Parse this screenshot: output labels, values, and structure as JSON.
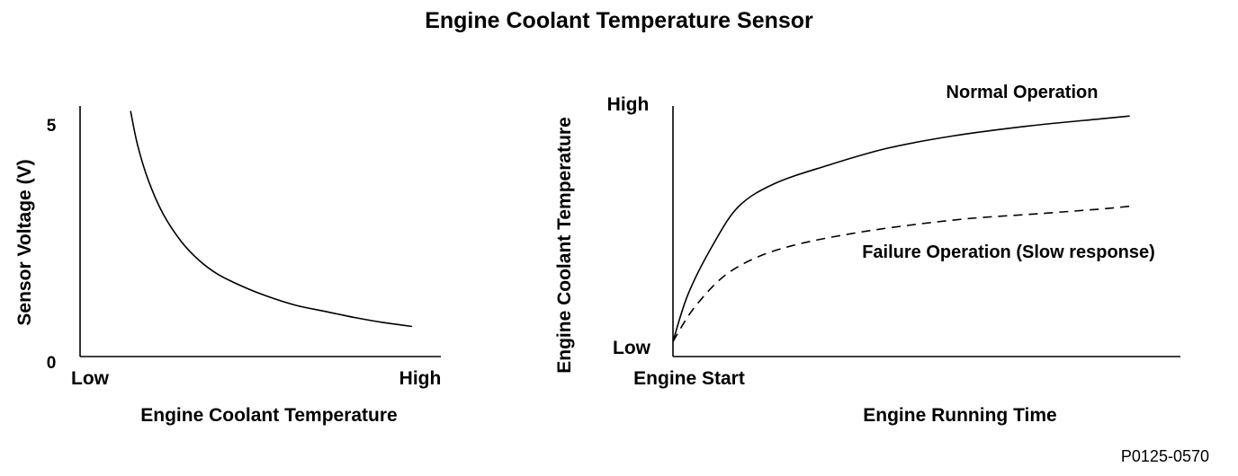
{
  "page": {
    "title": "Engine Coolant Temperature Sensor",
    "reference": "P0125-0570"
  },
  "chart_data": [
    {
      "type": "line",
      "xlabel": "Engine Coolant Temperature",
      "ylabel": "Sensor Voltage (V)",
      "x_tick_labels": [
        "Low",
        "High"
      ],
      "y_tick_labels": [
        "0",
        "5"
      ],
      "xlim": [
        0,
        1
      ],
      "ylim": [
        0,
        5
      ],
      "grid": false,
      "series": [
        {
          "x": [
            0.14,
            0.16,
            0.19,
            0.23,
            0.28,
            0.33,
            0.38,
            0.45,
            0.52,
            0.6,
            0.68,
            0.76,
            0.84,
            0.92
          ],
          "y": [
            4.9,
            4.2,
            3.5,
            2.85,
            2.3,
            1.92,
            1.65,
            1.4,
            1.2,
            1.02,
            0.9,
            0.78,
            0.68,
            0.6
          ]
        }
      ]
    },
    {
      "type": "line",
      "xlabel": "Engine Running Time",
      "ylabel": "Engine Coolant Temperature",
      "x_tick_labels": [
        "Engine Start"
      ],
      "y_tick_labels": [
        "Low",
        "High"
      ],
      "xlim": [
        0,
        1
      ],
      "ylim": [
        0,
        1
      ],
      "grid": false,
      "series": [
        {
          "name": "Normal Operation",
          "style": "solid",
          "x": [
            0,
            0.03,
            0.08,
            0.13,
            0.2,
            0.3,
            0.42,
            0.55,
            0.7,
            0.85,
            0.9
          ],
          "y": [
            0.06,
            0.25,
            0.45,
            0.6,
            0.69,
            0.76,
            0.83,
            0.88,
            0.92,
            0.95,
            0.96
          ]
        },
        {
          "name": "Failure Operation (Slow response)",
          "style": "dashed",
          "x": [
            0,
            0.04,
            0.1,
            0.17,
            0.25,
            0.35,
            0.45,
            0.58,
            0.72,
            0.85,
            0.9
          ],
          "y": [
            0.06,
            0.19,
            0.32,
            0.4,
            0.45,
            0.49,
            0.52,
            0.55,
            0.57,
            0.59,
            0.6
          ]
        }
      ]
    }
  ]
}
